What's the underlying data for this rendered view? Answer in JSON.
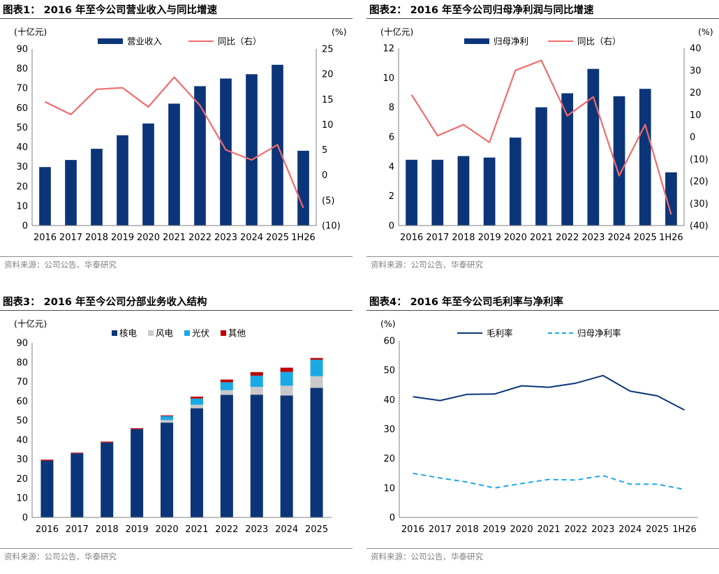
{
  "source_text": "资料来源：公司公告、华泰研究",
  "panels": [
    {
      "title": "图表1：  2016 年至今公司营业收入与同比增速",
      "source": "资料来源：公司公告、华泰研究"
    },
    {
      "title": "图表2：  2016 年至今公司归母净利润与同比增速",
      "source": "资料来源：公司公告、华泰研究"
    },
    {
      "title": "图表3：  2016 年至今公司分部业务收入结构",
      "source": "资料来源：公司公告、华泰研究"
    },
    {
      "title": "图表4：  2016 年至今公司毛利率与净利率",
      "source": "资料来源：公司公告、华泰研究"
    }
  ],
  "chart_data": [
    {
      "type": "bar",
      "title": "2016 年至今公司营业收入与同比增速",
      "categories": [
        "2016",
        "2017",
        "2018",
        "2019",
        "2020",
        "2021",
        "2022",
        "2023",
        "2024",
        "2025",
        "1H26"
      ],
      "ylabel": "(十亿元)",
      "y2label": "(%)",
      "ylim": [
        0,
        90
      ],
      "yticks": [
        "0",
        "10",
        "20",
        "30",
        "40",
        "50",
        "60",
        "70",
        "80",
        "90"
      ],
      "y2lim": [
        -10,
        25
      ],
      "y2ticks": [
        "(10)",
        "(5)",
        "0",
        "5",
        "10",
        "15",
        "20",
        "25"
      ],
      "legend_position": "top-center",
      "grid": false,
      "series": [
        {
          "name": "营业收入",
          "kind": "bar",
          "axis": "left",
          "color": "#0b3578",
          "values": [
            29.8,
            33.4,
            39.1,
            46.0,
            52.0,
            62.1,
            71.0,
            74.9,
            77.1,
            81.9,
            38.1
          ]
        },
        {
          "name": "同比（右）",
          "kind": "line",
          "axis": "right",
          "color": "#f26b6b",
          "values": [
            14.5,
            12.0,
            17.0,
            17.3,
            13.5,
            19.4,
            13.8,
            5.0,
            3.0,
            6.0,
            -6.5
          ]
        }
      ]
    },
    {
      "type": "bar",
      "title": "2016 年至今公司归母净利润与同比增速",
      "categories": [
        "2016",
        "2017",
        "2018",
        "2019",
        "2020",
        "2021",
        "2022",
        "2023",
        "2024",
        "2025",
        "1H26"
      ],
      "ylabel": "(十亿元)",
      "y2label": "(%)",
      "ylim": [
        0,
        12
      ],
      "yticks": [
        "0",
        "2",
        "4",
        "6",
        "8",
        "10",
        "12"
      ],
      "y2lim": [
        -40,
        40
      ],
      "y2ticks": [
        "(40)",
        "(30)",
        "(20)",
        "(10)",
        "0",
        "10",
        "20",
        "30",
        "40"
      ],
      "legend_position": "top-center",
      "grid": false,
      "series": [
        {
          "name": "归母净利",
          "kind": "bar",
          "axis": "left",
          "color": "#0b3578",
          "values": [
            4.45,
            4.45,
            4.7,
            4.6,
            5.95,
            8.0,
            8.95,
            10.6,
            8.75,
            9.25,
            3.6
          ]
        },
        {
          "name": "同比（右）",
          "kind": "line",
          "axis": "right",
          "color": "#f26b6b",
          "values": [
            19.0,
            0.5,
            5.5,
            -2.5,
            30.0,
            34.5,
            9.5,
            18.0,
            -17.5,
            5.5,
            -35.0
          ]
        }
      ]
    },
    {
      "type": "bar",
      "stacked": true,
      "title": "2016 年至今公司分部业务收入结构",
      "categories": [
        "2016",
        "2017",
        "2018",
        "2019",
        "2020",
        "2021",
        "2022",
        "2023",
        "2024",
        "2025"
      ],
      "ylabel": "(十亿元)",
      "ylim": [
        0,
        90
      ],
      "yticks": [
        "0",
        "10",
        "20",
        "30",
        "40",
        "50",
        "60",
        "70",
        "80",
        "90"
      ],
      "legend_position": "top-center",
      "grid": false,
      "series": [
        {
          "name": "核电",
          "color": "#0b3578",
          "values": [
            29.3,
            33.0,
            38.6,
            45.5,
            48.9,
            56.3,
            63.2,
            63.3,
            62.9,
            66.8
          ]
        },
        {
          "name": "风电",
          "color": "#c9c9c9",
          "values": [
            0.0,
            0.0,
            0.0,
            0.0,
            1.3,
            1.8,
            2.4,
            4.0,
            5.0,
            6.0
          ]
        },
        {
          "name": "光伏",
          "color": "#1ba9e5",
          "values": [
            0.0,
            0.0,
            0.0,
            0.0,
            2.0,
            3.2,
            4.1,
            5.8,
            7.1,
            8.5
          ]
        },
        {
          "name": "其他",
          "color": "#c00000",
          "values": [
            0.5,
            0.4,
            0.5,
            0.5,
            0.4,
            1.0,
            1.4,
            1.8,
            2.2,
            0.9
          ]
        }
      ]
    },
    {
      "type": "line",
      "title": "2016 年至今公司毛利率与净利率",
      "categories": [
        "2016",
        "2017",
        "2018",
        "2019",
        "2020",
        "2021",
        "2022",
        "2023",
        "2024",
        "2025",
        "1H26"
      ],
      "ylabel": "(%)",
      "ylim": [
        0,
        60
      ],
      "yticks": [
        "0",
        "10",
        "20",
        "30",
        "40",
        "50",
        "60"
      ],
      "legend_position": "top-center",
      "grid": false,
      "series": [
        {
          "name": "毛利率",
          "color": "#0b3578",
          "dashed": false,
          "values": [
            41.0,
            39.7,
            41.8,
            41.9,
            44.7,
            44.2,
            45.6,
            48.2,
            42.9,
            41.3,
            36.5
          ]
        },
        {
          "name": "归母净利率",
          "color": "#1ba9e5",
          "dashed": true,
          "values": [
            15.0,
            13.4,
            12.0,
            10.0,
            11.5,
            12.9,
            12.7,
            14.2,
            11.3,
            11.3,
            9.5
          ]
        }
      ]
    }
  ]
}
